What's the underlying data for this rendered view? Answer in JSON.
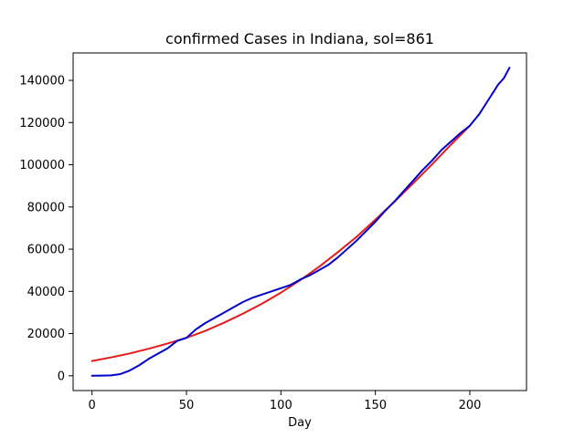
{
  "chart_data": {
    "type": "line",
    "title": "confirmed Cases in Indiana, sol=861",
    "xlabel": "Day",
    "ylabel": "",
    "xlim": [
      -10,
      230
    ],
    "ylim": [
      -7000,
      153000
    ],
    "xticks": [
      0,
      50,
      100,
      150,
      200
    ],
    "yticks": [
      0,
      20000,
      40000,
      60000,
      80000,
      100000,
      120000,
      140000
    ],
    "grid": false,
    "series": [
      {
        "color": "#e41a1c",
        "x": [
          0,
          10,
          20,
          30,
          40,
          50,
          60,
          70,
          80,
          90,
          100,
          110,
          120,
          130,
          140,
          150,
          160,
          170,
          180,
          190,
          200
        ],
        "y": [
          7000,
          8700,
          10600,
          12800,
          15300,
          18000,
          21300,
          25200,
          29500,
          34200,
          39400,
          45200,
          51500,
          58500,
          65800,
          74000,
          82400,
          91200,
          100200,
          109500,
          118500
        ]
      },
      {
        "color": "#0000cd",
        "x": [
          0,
          5,
          10,
          15,
          20,
          25,
          30,
          35,
          40,
          45,
          50,
          55,
          60,
          65,
          70,
          75,
          80,
          85,
          90,
          95,
          100,
          105,
          110,
          115,
          120,
          125,
          130,
          135,
          140,
          145,
          150,
          155,
          160,
          165,
          170,
          175,
          180,
          185,
          190,
          195,
          200,
          205,
          210,
          215,
          218,
          221
        ],
        "y": [
          0,
          100,
          200,
          800,
          2500,
          5000,
          8000,
          10500,
          13000,
          16500,
          18000,
          22000,
          25000,
          27500,
          30000,
          32500,
          35000,
          37000,
          38500,
          40000,
          41500,
          43000,
          45500,
          47500,
          50000,
          52500,
          56000,
          60000,
          64000,
          68500,
          73000,
          78000,
          82500,
          87500,
          92500,
          97500,
          102000,
          107000,
          111000,
          115000,
          118500,
          124000,
          131000,
          138000,
          141000,
          146000
        ]
      }
    ]
  }
}
